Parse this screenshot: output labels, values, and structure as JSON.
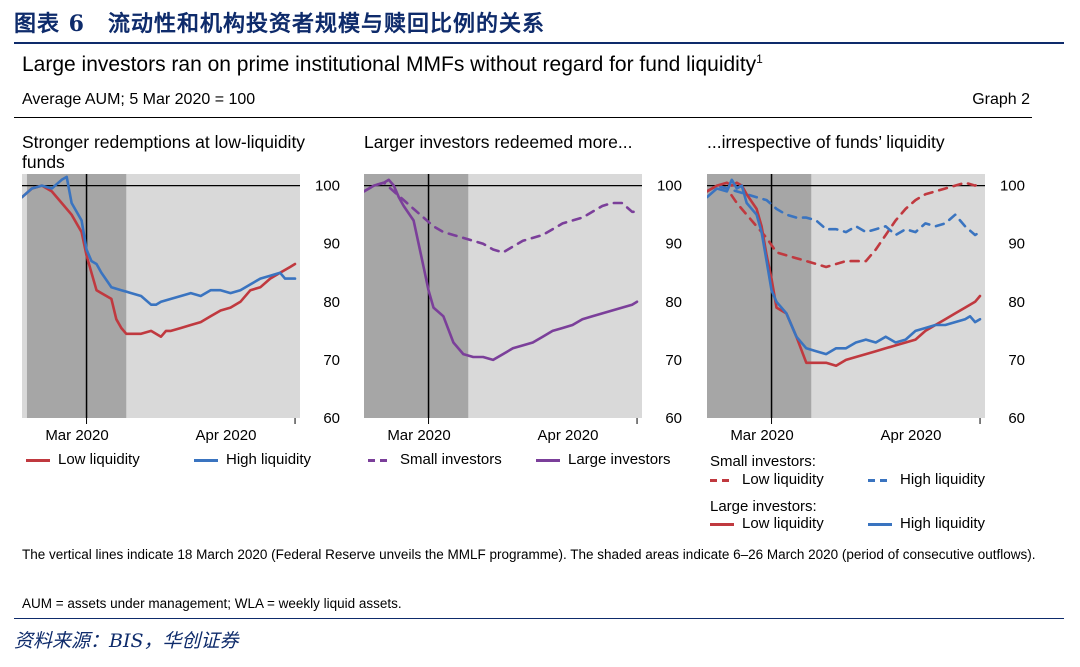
{
  "figure_label": "图表 6　流动性和机构投资者规模与赎回比例的关系",
  "title": "Large investors ran on prime institutional MMFs without regard for fund liquidity",
  "title_footnote": "1",
  "subtitle": "Average AUM; 5 Mar 2020 = 100",
  "graph_label": "Graph 2",
  "notes": [
    "The vertical lines indicate 18 March 2020 (Federal Reserve unveils the MMLF programme). The shaded areas indicate 6–26 March 2020 (period of consecutive outflows).",
    "AUM = assets under management; WLA = weekly liquid assets."
  ],
  "source": "资料来源：BIS，华创证券",
  "colors": {
    "red": "#c0393f",
    "blue": "#3a74c0",
    "purple": "#7b3f9a",
    "dark_shade": "#a6a6a6",
    "light_shade": "#d9d9d9"
  },
  "chart_data": [
    {
      "type": "line",
      "title": "Stronger redemptions at low-liquidity funds",
      "x_tick_labels": [
        "Mar 2020",
        "Apr 2020"
      ],
      "ylim": [
        60,
        102
      ],
      "y_ticks": [
        60,
        70,
        80,
        90,
        100
      ],
      "x_range_days": [
        0,
        56
      ],
      "shaded_days": [
        1,
        21
      ],
      "vertical_line_day": 13,
      "series": [
        {
          "name": "Low liquidity",
          "color": "red",
          "dashed": false,
          "x": [
            0,
            2,
            4,
            6,
            8,
            10,
            12,
            13,
            14,
            15,
            16,
            18,
            19,
            20,
            21,
            22,
            24,
            26,
            28,
            29,
            30,
            32,
            34,
            36,
            38,
            40,
            42,
            44,
            46,
            48,
            50,
            52,
            53,
            54,
            55
          ],
          "values": [
            98,
            99.5,
            100,
            99,
            97,
            95,
            92,
            88,
            85,
            82,
            81.5,
            80.5,
            77,
            75.5,
            74.5,
            74.5,
            74.5,
            75,
            74,
            75,
            75,
            75.5,
            76,
            76.5,
            77.5,
            78.5,
            79,
            80,
            82,
            82.5,
            84,
            85,
            85.5,
            86,
            86.5
          ]
        },
        {
          "name": "High liquidity",
          "color": "blue",
          "dashed": false,
          "x": [
            0,
            2,
            4,
            6,
            8,
            9,
            10,
            12,
            13,
            14,
            15,
            16,
            18,
            20,
            22,
            24,
            26,
            27,
            28,
            30,
            32,
            34,
            36,
            38,
            40,
            42,
            44,
            46,
            48,
            50,
            52,
            53,
            54,
            55
          ],
          "values": [
            98,
            99.5,
            100,
            99.5,
            101,
            101.5,
            97,
            94,
            89,
            87,
            86.5,
            85,
            82.5,
            82,
            81.5,
            81,
            79.5,
            79.5,
            80,
            80.5,
            81,
            81.5,
            81,
            82,
            82,
            81.5,
            82,
            83,
            84,
            84.5,
            85,
            84,
            84,
            84
          ]
        }
      ]
    },
    {
      "type": "line",
      "title": "Larger investors redeemed more...",
      "x_tick_labels": [
        "Mar 2020",
        "Apr 2020"
      ],
      "ylim": [
        60,
        102
      ],
      "y_ticks": [
        60,
        70,
        80,
        90,
        100
      ],
      "x_range_days": [
        0,
        56
      ],
      "shaded_days": [
        0,
        21
      ],
      "vertical_line_day": 13,
      "series": [
        {
          "name": "Small investors",
          "color": "purple",
          "dashed": true,
          "x": [
            0,
            2,
            4,
            6,
            8,
            10,
            12,
            14,
            16,
            18,
            20,
            22,
            24,
            26,
            28,
            30,
            32,
            34,
            36,
            38,
            40,
            42,
            44,
            46,
            48,
            50,
            52,
            54,
            55
          ],
          "values": [
            99,
            100,
            100.5,
            99,
            97.5,
            96,
            94.5,
            93,
            92,
            91.5,
            91,
            90.5,
            90,
            89,
            88.5,
            89.5,
            90.5,
            91,
            91.5,
            92.5,
            93.5,
            94,
            94.5,
            95.5,
            96.5,
            97,
            97,
            95.5,
            95.5
          ]
        },
        {
          "name": "Large investors",
          "color": "purple",
          "dashed": false,
          "x": [
            0,
            2,
            4,
            5,
            6,
            7,
            8,
            10,
            11,
            12,
            13,
            14,
            16,
            18,
            20,
            22,
            24,
            26,
            28,
            30,
            32,
            34,
            36,
            38,
            40,
            42,
            44,
            46,
            48,
            50,
            52,
            54,
            55
          ],
          "values": [
            99,
            100,
            100.5,
            101,
            100,
            98,
            96.5,
            94,
            90,
            86,
            82,
            79,
            77.5,
            73,
            71,
            70.5,
            70.5,
            70,
            71,
            72,
            72.5,
            73,
            74,
            75,
            75.5,
            76,
            77,
            77.5,
            78,
            78.5,
            79,
            79.5,
            80
          ]
        }
      ]
    },
    {
      "type": "line",
      "title": "...irrespective of funds’ liquidity",
      "x_tick_labels": [
        "Mar 2020",
        "Apr 2020"
      ],
      "ylim": [
        60,
        102
      ],
      "y_ticks": [
        60,
        70,
        80,
        90,
        100
      ],
      "x_range_days": [
        0,
        56
      ],
      "shaded_days": [
        0,
        21
      ],
      "vertical_line_day": 13,
      "legend_groups": [
        "Small investors:",
        "Large investors:"
      ],
      "series": [
        {
          "name": "Low liquidity",
          "group": "Small investors:",
          "color": "red",
          "dashed": true,
          "x": [
            0,
            2,
            4,
            6,
            8,
            10,
            12,
            14,
            16,
            18,
            20,
            22,
            24,
            26,
            28,
            30,
            32,
            34,
            36,
            38,
            40,
            42,
            44,
            46,
            48,
            50,
            52,
            54,
            55
          ],
          "values": [
            99,
            100,
            99.5,
            97,
            95,
            93,
            91,
            88.5,
            88,
            87.5,
            87,
            86.5,
            86,
            86.5,
            87,
            87,
            87,
            89,
            91.5,
            94,
            96,
            97.5,
            98.5,
            99,
            99.5,
            100,
            100.5,
            100,
            100.5
          ]
        },
        {
          "name": "High liquidity",
          "group": "Small investors:",
          "color": "blue",
          "dashed": true,
          "x": [
            0,
            2,
            4,
            6,
            8,
            10,
            12,
            14,
            16,
            18,
            20,
            22,
            24,
            26,
            28,
            30,
            32,
            34,
            36,
            38,
            40,
            42,
            44,
            46,
            48,
            50,
            52,
            54,
            55
          ],
          "values": [
            99,
            100,
            99.5,
            99,
            98.5,
            98,
            97.5,
            96,
            95,
            94.5,
            94.5,
            94,
            92.5,
            92.5,
            92,
            93,
            92,
            92.5,
            93,
            91.5,
            92.5,
            92,
            93.5,
            93,
            93.5,
            95,
            93,
            91.5,
            92
          ]
        },
        {
          "name": "Low liquidity",
          "group": "Large investors:",
          "color": "red",
          "dashed": false,
          "x": [
            0,
            2,
            4,
            5,
            6,
            7,
            8,
            10,
            11,
            12,
            13,
            14,
            16,
            18,
            20,
            22,
            24,
            26,
            28,
            30,
            32,
            34,
            36,
            38,
            40,
            42,
            44,
            46,
            48,
            50,
            52,
            54,
            55
          ],
          "values": [
            99,
            100,
            100.5,
            100,
            100.5,
            100,
            98.5,
            96,
            93,
            88,
            84,
            79,
            78,
            74,
            69.5,
            69.5,
            69.5,
            69,
            70,
            70.5,
            71,
            71.5,
            72,
            72.5,
            73,
            73.5,
            75,
            76,
            77,
            78,
            79,
            80,
            81
          ]
        },
        {
          "name": "High liquidity",
          "group": "Large investors:",
          "color": "blue",
          "dashed": false,
          "x": [
            0,
            2,
            4,
            5,
            6,
            7,
            8,
            10,
            11,
            12,
            13,
            14,
            16,
            18,
            20,
            22,
            24,
            26,
            28,
            30,
            32,
            34,
            36,
            38,
            40,
            42,
            44,
            46,
            48,
            50,
            52,
            53,
            54,
            55
          ],
          "values": [
            98,
            99.5,
            99,
            101,
            99.5,
            100,
            97,
            95,
            92,
            87,
            82,
            80,
            78,
            74,
            72,
            71.5,
            71,
            72,
            72,
            73,
            73.5,
            73,
            74,
            73,
            73.5,
            75,
            75.5,
            76,
            76,
            76.5,
            77,
            77.5,
            76.5,
            77
          ]
        }
      ]
    }
  ]
}
